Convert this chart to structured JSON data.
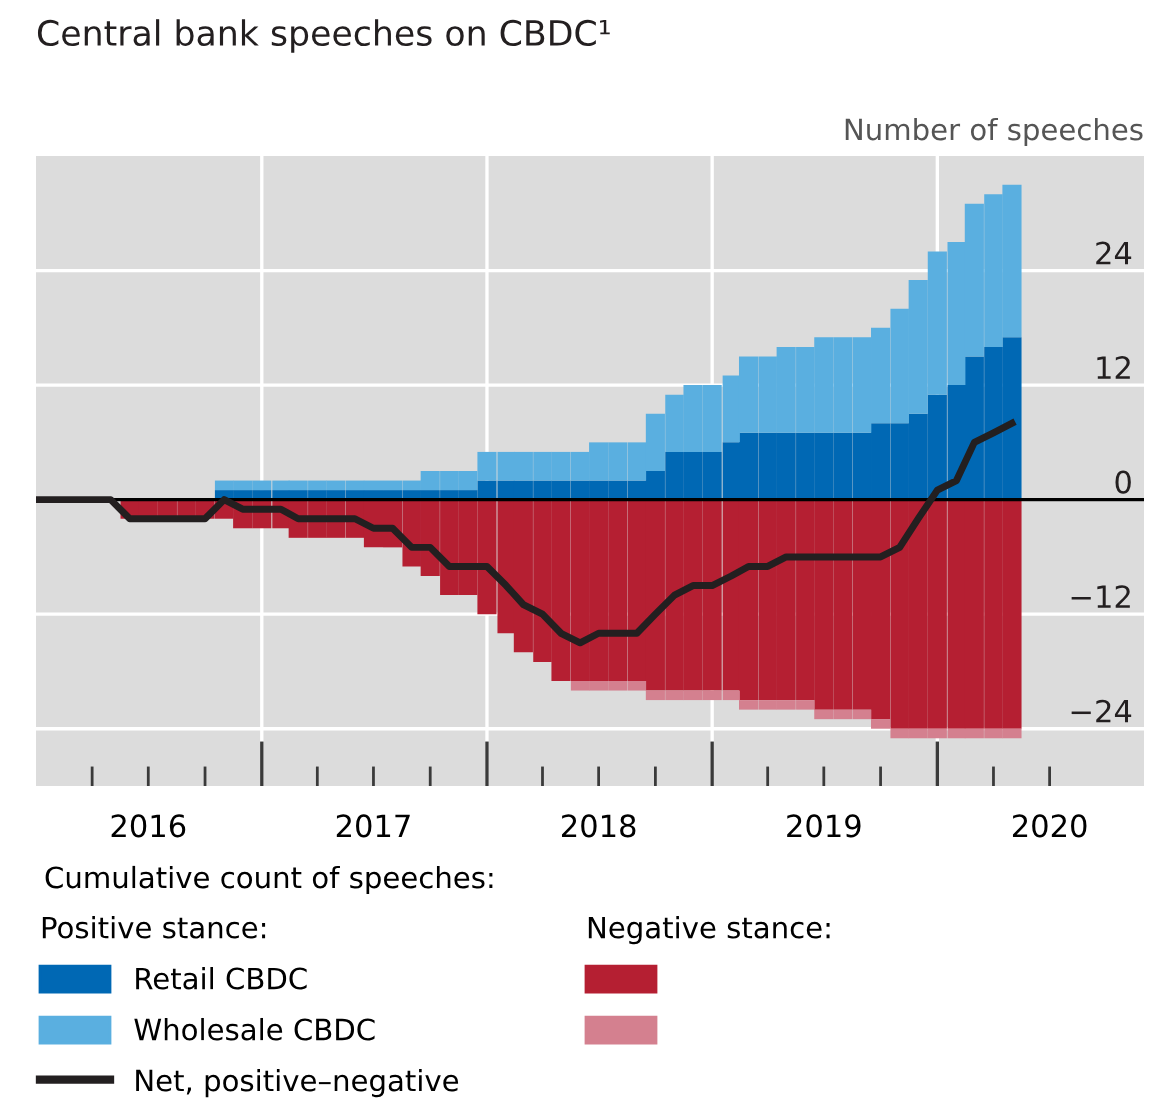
{
  "chart_data": {
    "type": "bar",
    "title": "Central bank speeches on CBDC¹",
    "ylabel": "Number of speeches",
    "legend_title": "Cumulative count of speeches:",
    "annotations": [
      "Positive stance:",
      "Negative stance:"
    ],
    "x": [
      "2016-01",
      "2016-02",
      "2016-03",
      "2016-04",
      "2016-05",
      "2016-06",
      "2016-07",
      "2016-08",
      "2016-09",
      "2016-10",
      "2016-11",
      "2016-12",
      "2017-01",
      "2017-02",
      "2017-03",
      "2017-04",
      "2017-05",
      "2017-06",
      "2017-07",
      "2017-08",
      "2017-09",
      "2017-10",
      "2017-11",
      "2017-12",
      "2018-01",
      "2018-02",
      "2018-03",
      "2018-04",
      "2018-05",
      "2018-06",
      "2018-07",
      "2018-08",
      "2018-09",
      "2018-10",
      "2018-11",
      "2018-12",
      "2019-01",
      "2019-02",
      "2019-03",
      "2019-04",
      "2019-05",
      "2019-06",
      "2019-07",
      "2019-08",
      "2019-09",
      "2019-10",
      "2019-11",
      "2019-12",
      "2020-01",
      "2020-02",
      "2020-03",
      "2020-04",
      "2020-05"
    ],
    "stacked": true,
    "series": [
      {
        "name": "Retail CBDC",
        "color": "#0068b4",
        "values": [
          0,
          0,
          0,
          0,
          0,
          0,
          0,
          0,
          0,
          0,
          1,
          1,
          1,
          1,
          1,
          1,
          1,
          1,
          1,
          1,
          1,
          1,
          1,
          1,
          2,
          2,
          2,
          2,
          2,
          2,
          2,
          2,
          2,
          3,
          5,
          5,
          5,
          6,
          7,
          7,
          7,
          7,
          7,
          7,
          7,
          8,
          8,
          9,
          11,
          12,
          15,
          16,
          17
        ]
      },
      {
        "name": "Wholesale CBDC",
        "color": "#5aafe0",
        "values": [
          0,
          0,
          0,
          0,
          0,
          0,
          0,
          0,
          0,
          0,
          1,
          1,
          1,
          1,
          1,
          1,
          1,
          1,
          1,
          1,
          1,
          2,
          2,
          2,
          3,
          3,
          3,
          3,
          3,
          3,
          4,
          4,
          4,
          6,
          6,
          7,
          7,
          7,
          8,
          8,
          9,
          9,
          10,
          10,
          10,
          10,
          12,
          14,
          15,
          15,
          16,
          16,
          16
        ]
      },
      {
        "color": "#b51f32",
        "values": [
          0,
          0,
          0,
          0,
          0,
          -2,
          -2,
          -2,
          -2,
          -2,
          -2,
          -3,
          -3,
          -3,
          -4,
          -4,
          -4,
          -4,
          -5,
          -5,
          -7,
          -8,
          -10,
          -10,
          -12,
          -14,
          -16,
          -17,
          -19,
          -19,
          -19,
          -19,
          -19,
          -20,
          -20,
          -20,
          -20,
          -20,
          -21,
          -21,
          -21,
          -21,
          -22,
          -22,
          -22,
          -23,
          -24,
          -24,
          -24,
          -24,
          -24,
          -24,
          -24
        ]
      },
      {
        "color": "#d4808f",
        "values": [
          0,
          0,
          0,
          0,
          0,
          0,
          0,
          0,
          0,
          0,
          0,
          0,
          0,
          0,
          0,
          0,
          0,
          0,
          0,
          0,
          0,
          0,
          0,
          0,
          0,
          0,
          0,
          0,
          0,
          -1,
          -1,
          -1,
          -1,
          -1,
          -1,
          -1,
          -1,
          -1,
          -1,
          -1,
          -1,
          -1,
          -1,
          -1,
          -1,
          -1,
          -1,
          -1,
          -1,
          -1,
          -1,
          -1,
          -1
        ]
      },
      {
        "name": "Net, positive–negative",
        "type": "line",
        "color": "#231f20",
        "values": [
          0,
          0,
          0,
          0,
          0,
          -2,
          -2,
          -2,
          -2,
          -2,
          0,
          -1,
          -1,
          -1,
          -2,
          -2,
          -2,
          -2,
          -3,
          -3,
          -5,
          -5,
          -7,
          -7,
          -7,
          -9,
          -11,
          -12,
          -14,
          -15,
          -14,
          -14,
          -14,
          -12,
          -10,
          -9,
          -9,
          -8,
          -7,
          -7,
          -6,
          -6,
          -6,
          -6,
          -6,
          -6,
          -5,
          -2,
          1,
          2,
          6,
          7,
          8
        ]
      }
    ],
    "xlim": [
      "2016-01-01",
      "2020-12-01"
    ],
    "xticks": [
      {
        "value": "2016-04-01",
        "label": null
      },
      {
        "value": "2016-07-01",
        "label": "2016"
      },
      {
        "value": "2016-10-01",
        "label": null
      },
      {
        "value": "2017-01-01",
        "label": null
      },
      {
        "value": "2017-04-01",
        "label": null
      },
      {
        "value": "2017-07-01",
        "label": "2017"
      },
      {
        "value": "2017-10-01",
        "label": null
      },
      {
        "value": "2018-01-01",
        "label": null
      },
      {
        "value": "2018-04-01",
        "label": null
      },
      {
        "value": "2018-07-01",
        "label": "2018"
      },
      {
        "value": "2018-10-01",
        "label": null
      },
      {
        "value": "2019-01-01",
        "label": null
      },
      {
        "value": "2019-04-01",
        "label": null
      },
      {
        "value": "2019-07-01",
        "label": "2019"
      },
      {
        "value": "2019-10-01",
        "label": null
      },
      {
        "value": "2020-01-01",
        "label": null
      },
      {
        "value": "2020-04-01",
        "label": null
      },
      {
        "value": "2020-07-01",
        "label": "2020"
      }
    ],
    "ylim": [
      -30,
      36
    ],
    "yticks": [
      {
        "value": -24,
        "label": "−24"
      },
      {
        "value": -12,
        "label": "−12"
      },
      0,
      12,
      24
    ],
    "ref_lines": [
      {
        "axis": "y",
        "value": 0,
        "color": "#000000"
      }
    ],
    "grid": true,
    "legend": "bottom"
  }
}
